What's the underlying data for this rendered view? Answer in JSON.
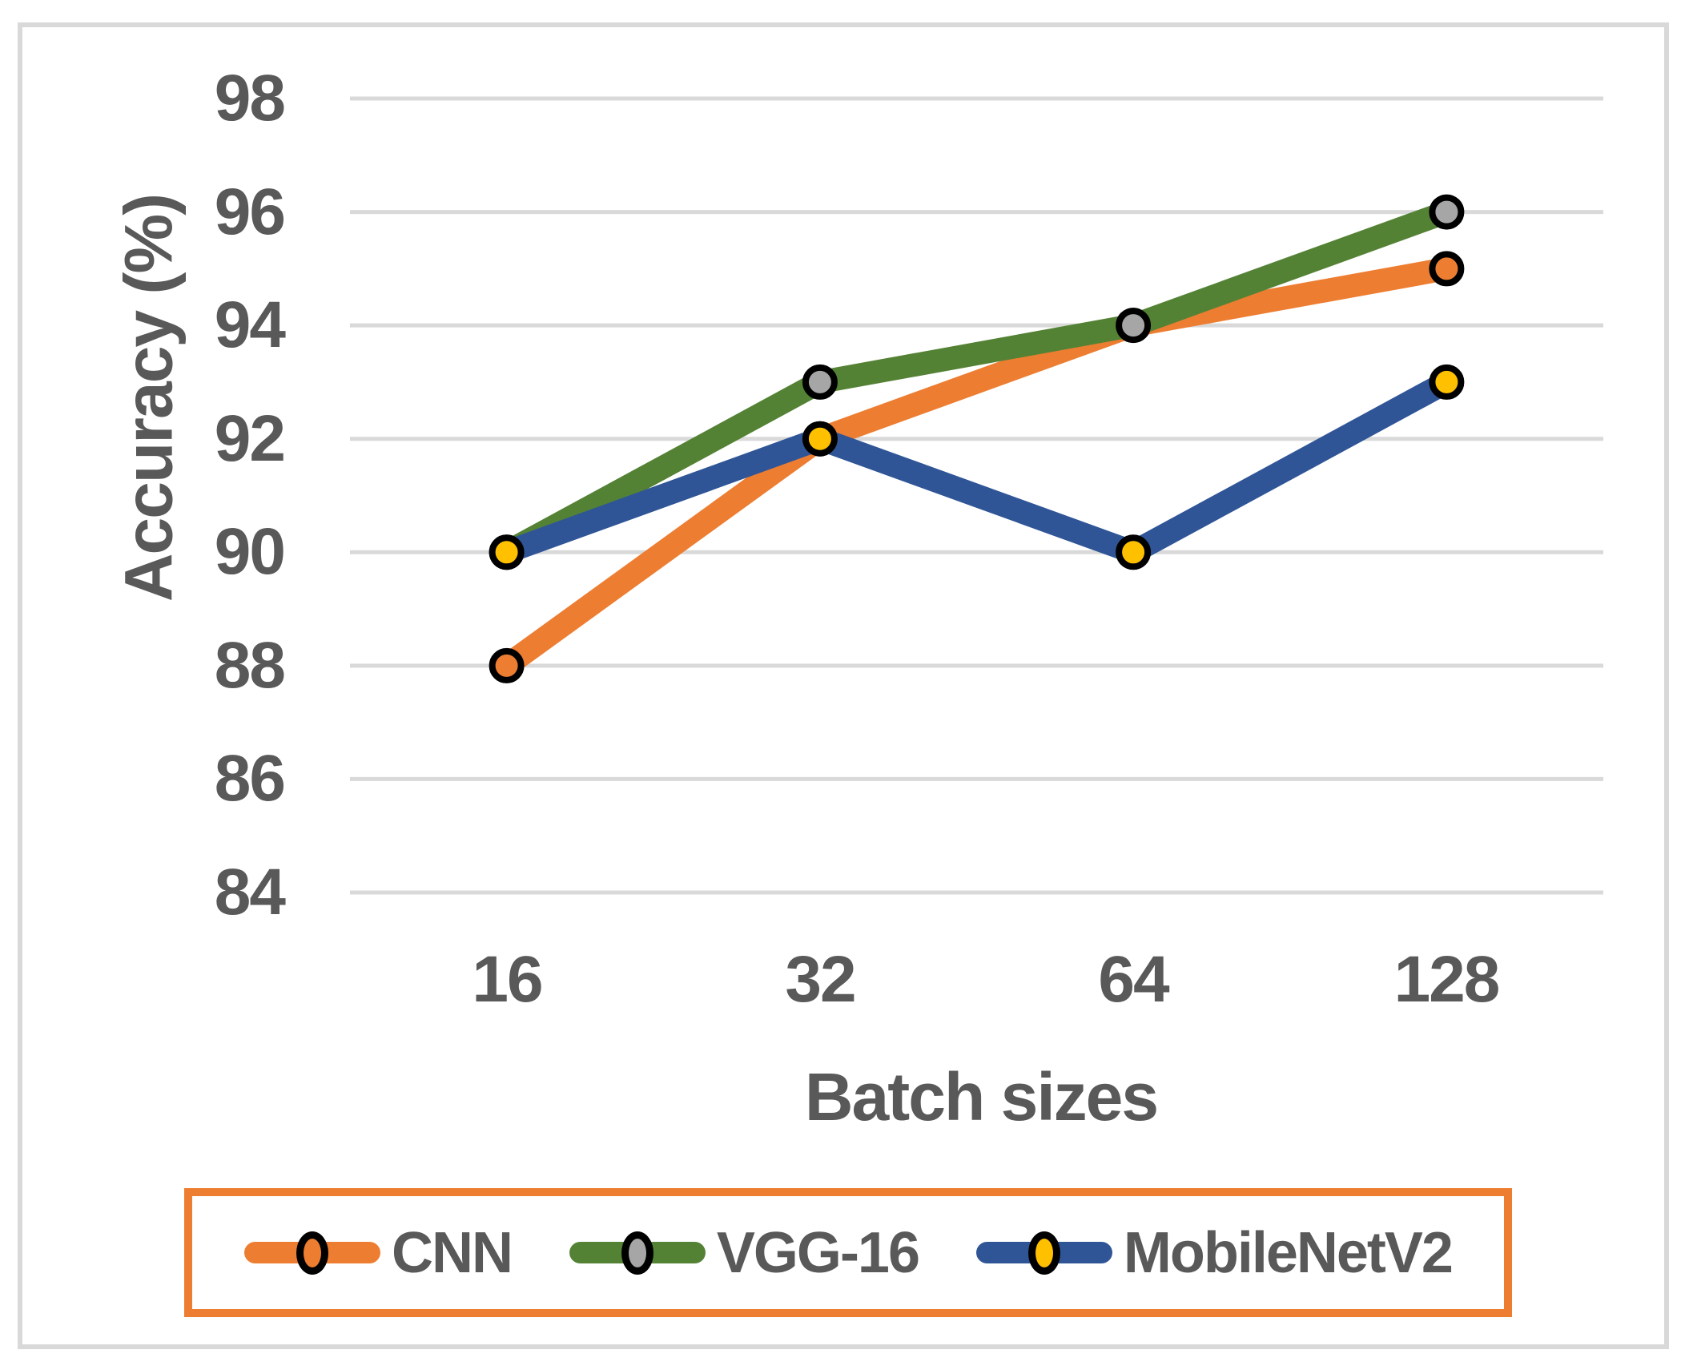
{
  "chart_data": {
    "type": "line",
    "title": "",
    "xlabel": "Batch sizes",
    "ylabel": "Accuracy (%)",
    "categories": [
      "16",
      "32",
      "64",
      "128"
    ],
    "y_ticks": [
      98,
      96,
      94,
      92,
      90,
      88,
      86,
      84
    ],
    "ylim": [
      84,
      98
    ],
    "grid": "horizontal-only",
    "legend_position": "bottom",
    "series": [
      {
        "name": "CNN",
        "values": [
          88,
          92,
          94,
          95
        ],
        "line_color": "#ED7D31",
        "marker_fill": "#ED7D31",
        "marker_stroke": "#000000"
      },
      {
        "name": "VGG-16",
        "values": [
          90,
          93,
          94,
          96
        ],
        "line_color": "#548235",
        "marker_fill": "#A6A6A6",
        "marker_stroke": "#000000"
      },
      {
        "name": "MobileNetV2",
        "values": [
          90,
          92,
          90,
          93
        ],
        "line_color": "#2F5597",
        "marker_fill": "#FFC000",
        "marker_stroke": "#000000"
      }
    ]
  },
  "colors": {
    "background": "#FFFFFF",
    "text": "#595959",
    "gridline": "#D9D9D9",
    "frame_border": "#D9D9D9",
    "legend_border": "#ED7D31"
  }
}
